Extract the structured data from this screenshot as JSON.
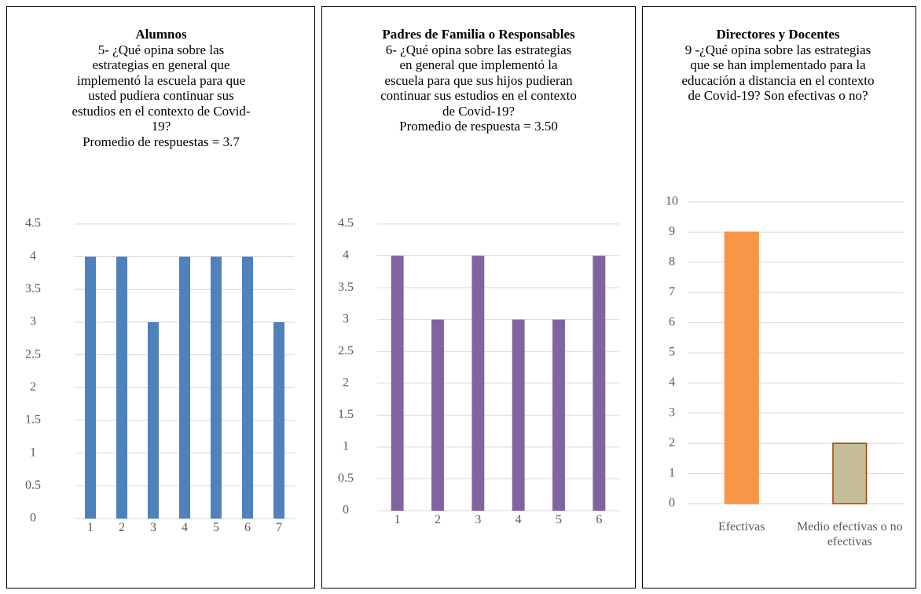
{
  "chart_data": [
    {
      "type": "bar",
      "title": "Alumnos",
      "subtitle": "5- ¿Qué opina sobre las estrategias en general que implementó la escuela para que usted pudiera  continuar sus estudios en el contexto de Covid-19?",
      "annotation": "Promedio de respuestas = 3.7",
      "categories": [
        "1",
        "2",
        "3",
        "4",
        "5",
        "6",
        "7"
      ],
      "values": [
        4,
        4,
        3,
        4,
        4,
        4,
        3
      ],
      "color": "#4f81bd",
      "ylim": [
        0,
        4.5
      ],
      "yticks": [
        0,
        0.5,
        1,
        1.5,
        2,
        2.5,
        3,
        3.5,
        4,
        4.5
      ],
      "grid": true
    },
    {
      "type": "bar",
      "title": "Padres de Familia o Responsables",
      "subtitle": "6- ¿Qué opina sobre las estrategias en general que implementó la escuela para que sus hijos pudieran continuar sus estudios en el contexto de Covid-19?",
      "annotation": "Promedio de respuesta = 3.50",
      "categories": [
        "1",
        "2",
        "3",
        "4",
        "5",
        "6"
      ],
      "values": [
        4,
        3,
        4,
        3,
        3,
        4
      ],
      "color": "#8064a2",
      "ylim": [
        0,
        4.5
      ],
      "yticks": [
        0,
        0.5,
        1,
        1.5,
        2,
        2.5,
        3,
        3.5,
        4,
        4.5
      ],
      "grid": true
    },
    {
      "type": "bar",
      "title": "Directores y Docentes",
      "subtitle": "9 -¿Qué opina sobre las estrategias que se han implementado para la educación a distancia en el contexto de Covid-19?  Son efectivas o no?",
      "categories": [
        "Efectivas",
        "Medio efectivas o no efectivas"
      ],
      "values": [
        9,
        2
      ],
      "colors": [
        "#f79646",
        "#c4bd97"
      ],
      "edgecolors": [
        "#f79646",
        "#984807"
      ],
      "ylim": [
        0,
        10
      ],
      "yticks": [
        0,
        1,
        2,
        3,
        4,
        5,
        6,
        7,
        8,
        9,
        10
      ],
      "grid": true
    }
  ]
}
